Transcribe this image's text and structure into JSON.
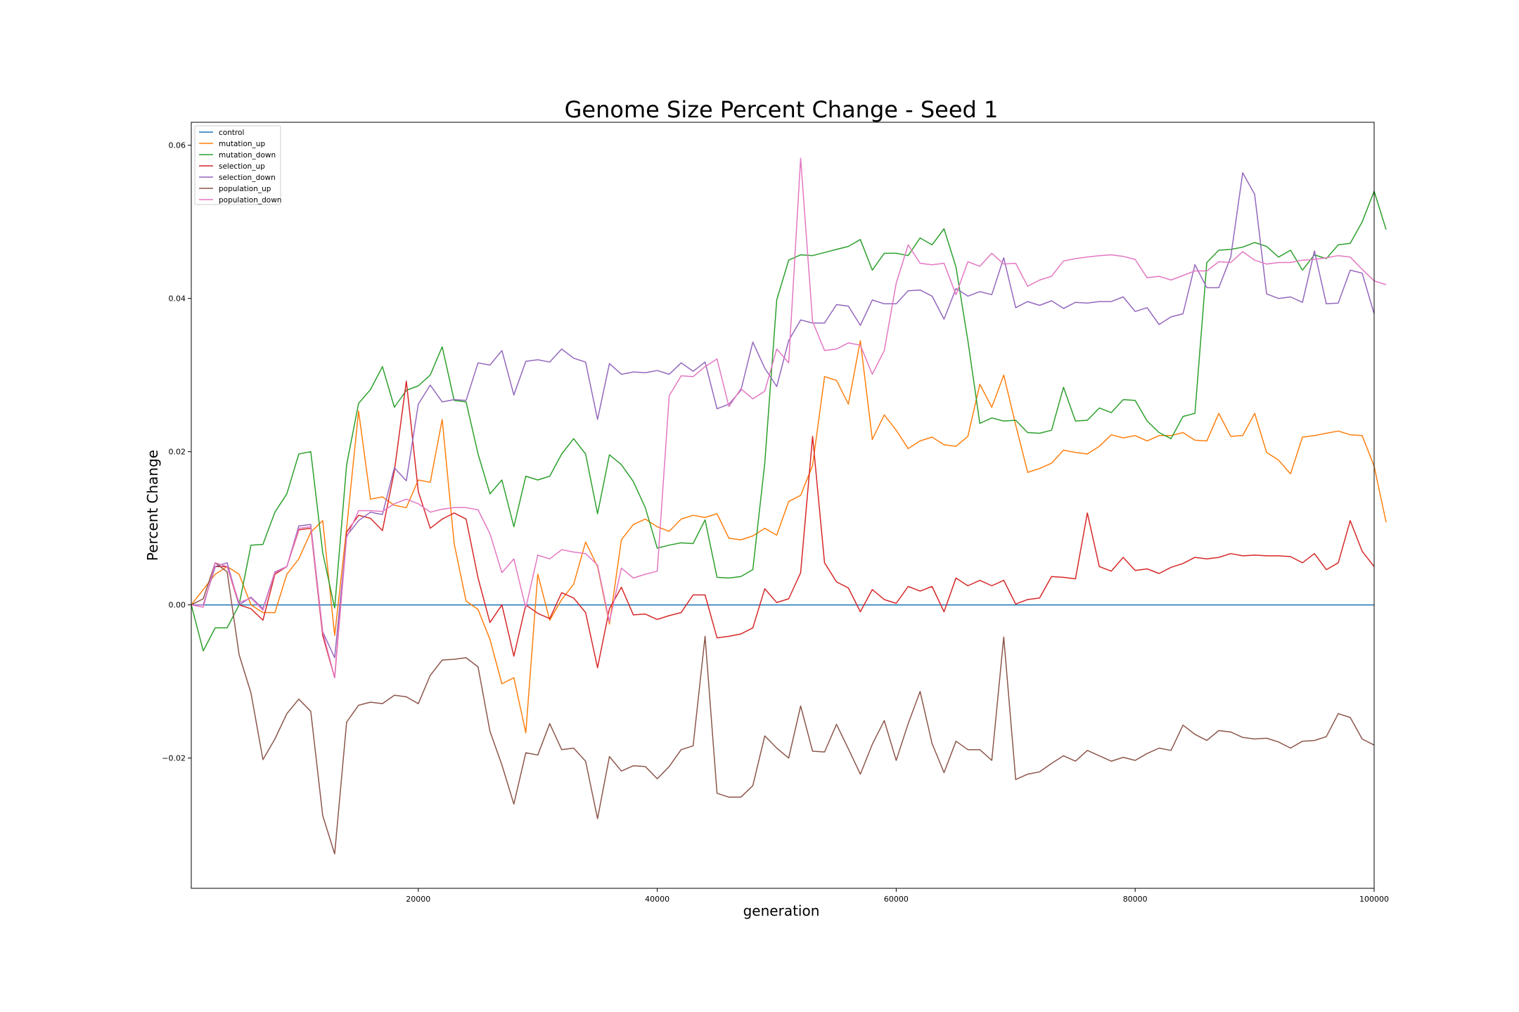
{
  "chart_data": {
    "type": "line",
    "title": "Genome Size Percent Change - Seed 1",
    "xlabel": "generation",
    "ylabel": "Percent Change",
    "xlim": [
      1000,
      100000
    ],
    "ylim": [
      -0.037,
      0.063
    ],
    "xticks": [
      20000,
      40000,
      60000,
      80000,
      100000
    ],
    "xtick_labels": [
      "20000",
      "40000",
      "60000",
      "80000",
      "100000"
    ],
    "yticks": [
      -0.02,
      0.0,
      0.02,
      0.04,
      0.06
    ],
    "ytick_labels": [
      "−0.02",
      "0.00",
      "0.02",
      "0.04",
      "0.06"
    ],
    "legend_position": "upper-left",
    "grid": false,
    "x_start": 1000,
    "x_step": 1000,
    "series": [
      {
        "name": "control",
        "color": "#1f77b4",
        "values": [
          0,
          0,
          0,
          0,
          0,
          0,
          0,
          0,
          0,
          0,
          0,
          0,
          0,
          0,
          0,
          0,
          0,
          0,
          0,
          0,
          0,
          0,
          0,
          0,
          0,
          0,
          0,
          0,
          0,
          0,
          0,
          0,
          0,
          0,
          0,
          0,
          0,
          0,
          0,
          0,
          0,
          0,
          0,
          0,
          0,
          0,
          0,
          0,
          0,
          0,
          0,
          0,
          0,
          0,
          0,
          0,
          0,
          0,
          0,
          0,
          0,
          0,
          0,
          0,
          0,
          0,
          0,
          0,
          0,
          0,
          0,
          0,
          0,
          0,
          0,
          0,
          0,
          0,
          0,
          0,
          0,
          0,
          0,
          0,
          0,
          0,
          0,
          0,
          0,
          0,
          0,
          0,
          0,
          0,
          0,
          0,
          0,
          0,
          0,
          0
        ]
      },
      {
        "name": "mutation_up",
        "color": "#ff7f0e",
        "values": [
          0,
          0.002,
          0.004,
          0.005,
          0.004,
          0,
          -0.001,
          -0.001,
          0.004,
          0.006,
          0.0095,
          0.011,
          -0.004,
          0.01,
          0.0253,
          0.0138,
          0.0141,
          0.013,
          0.0127,
          0.0163,
          0.016,
          0.0242,
          0.008,
          0.0005,
          -0.0006,
          -0.0045,
          -0.0103,
          -0.0095,
          -0.0167,
          0.004,
          -0.002,
          0.0007,
          0.0027,
          0.0082,
          0.005,
          -0.0025,
          0.0085,
          0.0105,
          0.0112,
          0.0102,
          0.0096,
          0.0112,
          0.0117,
          0.0114,
          0.0119,
          0.0087,
          0.0085,
          0.009,
          0.01,
          0.0091,
          0.0135,
          0.0143,
          0.0182,
          0.0298,
          0.0293,
          0.0262,
          0.0345,
          0.0216,
          0.0248,
          0.0228,
          0.0204,
          0.0214,
          0.0219,
          0.0209,
          0.0207,
          0.022,
          0.0288,
          0.0258,
          0.03,
          0.0235,
          0.0173,
          0.0178,
          0.0185,
          0.0202,
          0.0199,
          0.0197,
          0.0207,
          0.0222,
          0.0218,
          0.0221,
          0.0214,
          0.0221,
          0.0221,
          0.0225,
          0.0215,
          0.0214,
          0.025,
          0.022,
          0.0221,
          0.025,
          0.0199,
          0.0189,
          0.0171,
          0.0219,
          0.0221,
          0.0224,
          0.0227,
          0.0222,
          0.0221,
          0.0181,
          0.0108
        ]
      },
      {
        "name": "mutation_down",
        "color": "#2ca02c",
        "values": [
          0,
          -0.006,
          -0.003,
          -0.003,
          0,
          0.0078,
          0.0079,
          0.0121,
          0.0145,
          0.0197,
          0.02,
          0.0068,
          -0.0004,
          0.0183,
          0.0263,
          0.0281,
          0.0311,
          0.0258,
          0.028,
          0.0286,
          0.03,
          0.0337,
          0.0267,
          0.0265,
          0.0197,
          0.0145,
          0.0163,
          0.0102,
          0.0168,
          0.0163,
          0.0168,
          0.0197,
          0.0217,
          0.0197,
          0.0119,
          0.0196,
          0.0183,
          0.0161,
          0.0127,
          0.0074,
          0.0078,
          0.0081,
          0.008,
          0.0111,
          0.0036,
          0.0035,
          0.0037,
          0.0046,
          0.0185,
          0.0398,
          0.045,
          0.0457,
          0.0456,
          0.046,
          0.0464,
          0.0468,
          0.0477,
          0.0437,
          0.0459,
          0.0459,
          0.0456,
          0.0479,
          0.047,
          0.0491,
          0.0441,
          0.0345,
          0.0237,
          0.0244,
          0.024,
          0.0241,
          0.0225,
          0.0224,
          0.0228,
          0.0284,
          0.024,
          0.0241,
          0.0257,
          0.0251,
          0.0268,
          0.0267,
          0.024,
          0.0225,
          0.0217,
          0.0246,
          0.025,
          0.0447,
          0.0463,
          0.0464,
          0.0467,
          0.0473,
          0.0468,
          0.0454,
          0.0463,
          0.0437,
          0.0457,
          0.0452,
          0.047,
          0.0472,
          0.05,
          0.054,
          0.049
        ]
      },
      {
        "name": "selection_up",
        "color": "#d62728",
        "values": [
          0,
          0,
          0.005,
          0.005,
          0,
          -0.0005,
          -0.002,
          0.004,
          0.005,
          0.0098,
          0.01,
          -0.004,
          -0.0095,
          0.0095,
          0.0117,
          0.0113,
          0.0097,
          0.0175,
          0.0292,
          0.0148,
          0.01,
          0.0112,
          0.012,
          0.0112,
          0.0035,
          -0.0023,
          0,
          -0.0067,
          0,
          -0.0011,
          -0.0018,
          0.0016,
          0.0009,
          -0.001,
          -0.0082,
          -0.0005,
          0.0023,
          -0.0013,
          -0.0012,
          -0.0019,
          -0.0014,
          -0.001,
          0.0013,
          0.0013,
          -0.0043,
          -0.0041,
          -0.0038,
          -0.003,
          0.0021,
          0.0003,
          0.0008,
          0.0042,
          0.022,
          0.0055,
          0.003,
          0.0022,
          -0.0009,
          0.002,
          0.0007,
          0.0002,
          0.0024,
          0.0018,
          0.0024,
          -0.0009,
          0.0035,
          0.0025,
          0.0032,
          0.0025,
          0.0032,
          0.0001,
          0.0007,
          0.0009,
          0.0037,
          0.0036,
          0.0034,
          0.012,
          0.005,
          0.0044,
          0.0062,
          0.0045,
          0.0047,
          0.0041,
          0.0049,
          0.0054,
          0.0062,
          0.006,
          0.0062,
          0.0067,
          0.0064,
          0.0065,
          0.0064,
          0.0064,
          0.0063,
          0.0055,
          0.0067,
          0.0046,
          0.0055,
          0.011,
          0.007,
          0.005
        ]
      },
      {
        "name": "selection_down",
        "color": "#9467bd",
        "values": [
          0,
          0,
          0.005,
          0.0055,
          0,
          0.001,
          -0.0005,
          0.0043,
          0.005,
          0.0103,
          0.0105,
          -0.0035,
          -0.0069,
          0.009,
          0.011,
          0.0121,
          0.0118,
          0.0179,
          0.0162,
          0.0262,
          0.0287,
          0.0265,
          0.0268,
          0.0267,
          0.0316,
          0.0313,
          0.0332,
          0.0274,
          0.0318,
          0.032,
          0.0317,
          0.0334,
          0.0322,
          0.0317,
          0.0242,
          0.0315,
          0.0301,
          0.0304,
          0.0303,
          0.0306,
          0.0301,
          0.0316,
          0.0305,
          0.0317,
          0.0256,
          0.0262,
          0.028,
          0.0343,
          0.0309,
          0.0285,
          0.0345,
          0.0372,
          0.0368,
          0.0368,
          0.0392,
          0.039,
          0.0365,
          0.0398,
          0.0393,
          0.0393,
          0.041,
          0.0411,
          0.0403,
          0.0373,
          0.0413,
          0.0403,
          0.0409,
          0.0405,
          0.0453,
          0.0388,
          0.0396,
          0.0391,
          0.0397,
          0.0387,
          0.0395,
          0.0394,
          0.0396,
          0.0396,
          0.0402,
          0.0383,
          0.0388,
          0.0366,
          0.0376,
          0.038,
          0.0444,
          0.0414,
          0.0414,
          0.0454,
          0.0564,
          0.0536,
          0.0406,
          0.04,
          0.0402,
          0.0395,
          0.0462,
          0.0393,
          0.0394,
          0.0437,
          0.0433,
          0.038
        ]
      },
      {
        "name": "population_up",
        "color": "#8c564b",
        "values": [
          0,
          0.0008,
          0.0055,
          0.0043,
          -0.0065,
          -0.0115,
          -0.0202,
          -0.0175,
          -0.0142,
          -0.0123,
          -0.0139,
          -0.0275,
          -0.0325,
          -0.0153,
          -0.0131,
          -0.0127,
          -0.0129,
          -0.0118,
          -0.012,
          -0.0129,
          -0.0092,
          -0.0072,
          -0.0071,
          -0.0069,
          -0.0081,
          -0.0165,
          -0.0209,
          -0.026,
          -0.0193,
          -0.0196,
          -0.0155,
          -0.0189,
          -0.0187,
          -0.0204,
          -0.0279,
          -0.0198,
          -0.0217,
          -0.021,
          -0.0211,
          -0.0227,
          -0.0211,
          -0.0189,
          -0.0184,
          -0.0041,
          -0.0246,
          -0.0251,
          -0.0251,
          -0.0236,
          -0.0171,
          -0.0187,
          -0.02,
          -0.0132,
          -0.0191,
          -0.0192,
          -0.0156,
          -0.0188,
          -0.0221,
          -0.0182,
          -0.0151,
          -0.0203,
          -0.0155,
          -0.0113,
          -0.0181,
          -0.0219,
          -0.0178,
          -0.0189,
          -0.0189,
          -0.0203,
          -0.0042,
          -0.0228,
          -0.0221,
          -0.0218,
          -0.0207,
          -0.0197,
          -0.0204,
          -0.019,
          -0.0197,
          -0.0204,
          -0.0199,
          -0.0203,
          -0.0194,
          -0.0187,
          -0.019,
          -0.0157,
          -0.0169,
          -0.0177,
          -0.0164,
          -0.0166,
          -0.0173,
          -0.0175,
          -0.0174,
          -0.0179,
          -0.0187,
          -0.0178,
          -0.0177,
          -0.0172,
          -0.0142,
          -0.0147,
          -0.0175,
          -0.0183
        ]
      },
      {
        "name": "population_down",
        "color": "#e377c2",
        "values": [
          0,
          -0.0003,
          0.0055,
          0.005,
          0.0003,
          0.0009,
          -0.0007,
          0.0042,
          0.005,
          0.01,
          0.0102,
          -0.0035,
          -0.0095,
          0.0088,
          0.0123,
          0.0123,
          0.0122,
          0.0132,
          0.0138,
          0.0132,
          0.0121,
          0.0125,
          0.0127,
          0.0127,
          0.0124,
          0.0093,
          0.0042,
          0.006,
          -0.0004,
          0.0065,
          0.006,
          0.0072,
          0.0069,
          0.0067,
          0.0052,
          -0.0022,
          0.0048,
          0.0035,
          0.004,
          0.0044,
          0.0273,
          0.0299,
          0.0298,
          0.0311,
          0.0321,
          0.0259,
          0.0282,
          0.0269,
          0.0279,
          0.0334,
          0.0316,
          0.0583,
          0.037,
          0.0332,
          0.0334,
          0.0342,
          0.0339,
          0.0301,
          0.0332,
          0.042,
          0.047,
          0.0446,
          0.0444,
          0.0446,
          0.0405,
          0.0448,
          0.0442,
          0.0459,
          0.0445,
          0.0446,
          0.0416,
          0.0424,
          0.0429,
          0.0449,
          0.0452,
          0.0454,
          0.0456,
          0.0457,
          0.0455,
          0.0451,
          0.0427,
          0.0429,
          0.0424,
          0.043,
          0.0436,
          0.0436,
          0.0448,
          0.0447,
          0.0461,
          0.045,
          0.0445,
          0.0447,
          0.0447,
          0.045,
          0.0451,
          0.0453,
          0.0456,
          0.0454,
          0.0438,
          0.0423,
          0.0418
        ]
      }
    ]
  }
}
